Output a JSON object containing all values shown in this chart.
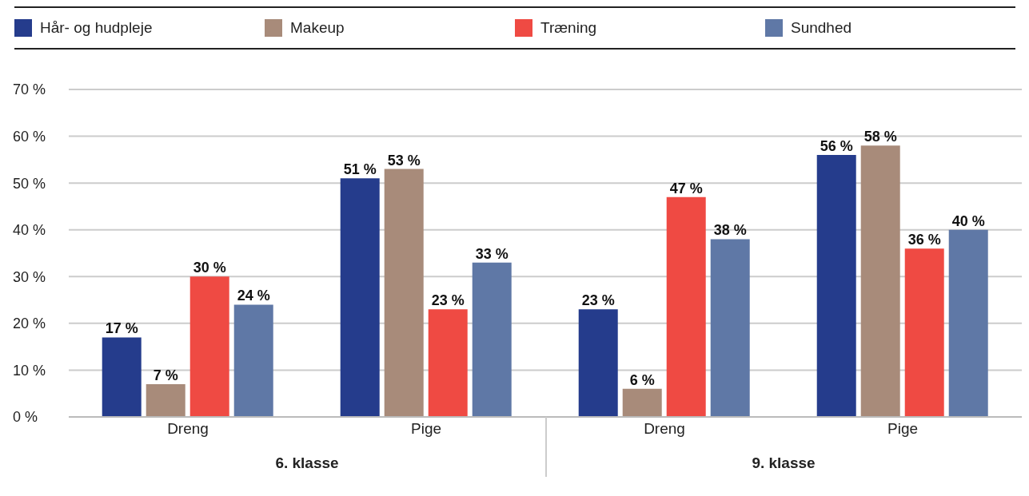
{
  "chart_data": {
    "type": "bar",
    "categories": [
      "Dreng",
      "Pige",
      "Dreng",
      "Pige"
    ],
    "series": [
      {
        "name": "Hår- og hudpleje",
        "color": "#253c8c",
        "values": [
          17,
          51,
          23,
          56
        ],
        "value_labels": [
          "17 %",
          "51 %",
          "23 %",
          "56 %"
        ]
      },
      {
        "name": "Makeup",
        "color": "#a88b7a",
        "values": [
          7,
          53,
          6,
          58
        ],
        "value_labels": [
          "7 %",
          "53 %",
          "6 %",
          "58 %"
        ]
      },
      {
        "name": "Træning",
        "color": "#ef4a43",
        "values": [
          30,
          23,
          47,
          36
        ],
        "value_labels": [
          "30 %",
          "23 %",
          "47 %",
          "36 %"
        ]
      },
      {
        "name": "Sundhed",
        "color": "#5f78a6",
        "values": [
          24,
          33,
          38,
          40
        ],
        "value_labels": [
          "24 %",
          "33 %",
          "38 %",
          "40 %"
        ]
      }
    ],
    "ylim": [
      0,
      70
    ],
    "yticks": [
      {
        "value": 0,
        "label": "0 %"
      },
      {
        "value": 10,
        "label": "10 %"
      },
      {
        "value": 20,
        "label": "20 %"
      },
      {
        "value": 30,
        "label": "30 %"
      },
      {
        "value": 40,
        "label": "40 %"
      },
      {
        "value": 50,
        "label": "50 %"
      },
      {
        "value": 60,
        "label": "60 %"
      },
      {
        "value": 70,
        "label": "70 %"
      }
    ],
    "grid": "y",
    "legend": "top",
    "annotations": [
      "6. klasse",
      "9. klasse"
    ]
  }
}
